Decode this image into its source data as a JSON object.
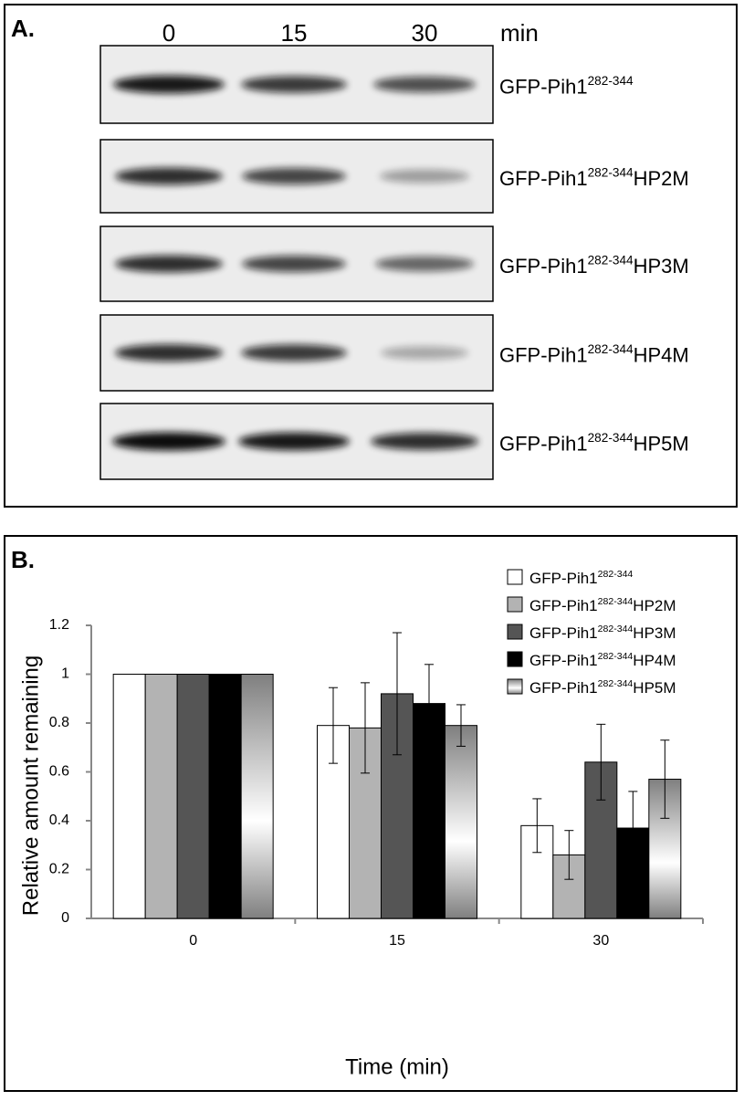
{
  "panel_a": {
    "label": "A.",
    "times": [
      "0",
      "15",
      "30"
    ],
    "time_unit": "min",
    "rows": [
      {
        "base": "GFP-Pih1",
        "sup": "282-344"
      },
      {
        "base": "GFP-Pih1",
        "sup": "282-344",
        "suffix": "HP2M"
      },
      {
        "base": "GFP-Pih1",
        "sup": "282-344",
        "suffix": "HP3M"
      },
      {
        "base": "GFP-Pih1",
        "sup": "282-344",
        "suffix": "HP4M"
      },
      {
        "base": "GFP-Pih1",
        "sup": "282-344",
        "suffix": "HP5M"
      }
    ]
  },
  "chart_data": {
    "type": "bar",
    "panel_label": "B.",
    "x_label": "Time (min)",
    "y_label": "Relative amount remaining",
    "categories": [
      "0",
      "15",
      "30"
    ],
    "series": [
      {
        "name": {
          "base": "GFP-Pih1",
          "sup": "282-344"
        },
        "color": "#ffffff",
        "values": [
          1,
          0.79,
          0.38
        ],
        "errors": [
          0,
          0.155,
          0.11
        ]
      },
      {
        "name": {
          "base": "GFP-Pih1",
          "sup": "282-344",
          "suffix": "HP2M"
        },
        "color": "#b3b3b3",
        "values": [
          1,
          0.78,
          0.26
        ],
        "errors": [
          0,
          0.185,
          0.1
        ]
      },
      {
        "name": {
          "base": "GFP-Pih1",
          "sup": "282-344",
          "suffix": "HP3M"
        },
        "color": "#555555",
        "values": [
          1,
          0.92,
          0.64
        ],
        "errors": [
          0,
          0.25,
          0.155
        ]
      },
      {
        "name": {
          "base": "GFP-Pih1",
          "sup": "282-344",
          "suffix": "HP4M"
        },
        "color": "#000000",
        "values": [
          1,
          0.88,
          0.37
        ],
        "errors": [
          0,
          0.16,
          0.15
        ]
      },
      {
        "name": {
          "base": "GFP-Pih1",
          "sup": "282-344",
          "suffix": "HP5M"
        },
        "color": "#7f7f7f",
        "values": [
          1,
          0.79,
          0.57
        ],
        "errors": [
          0,
          0.085,
          0.16
        ]
      }
    ],
    "ylim": [
      0,
      1.2
    ],
    "yticks": [
      0,
      0.2,
      0.4,
      0.6,
      0.8,
      1,
      1.2
    ]
  }
}
